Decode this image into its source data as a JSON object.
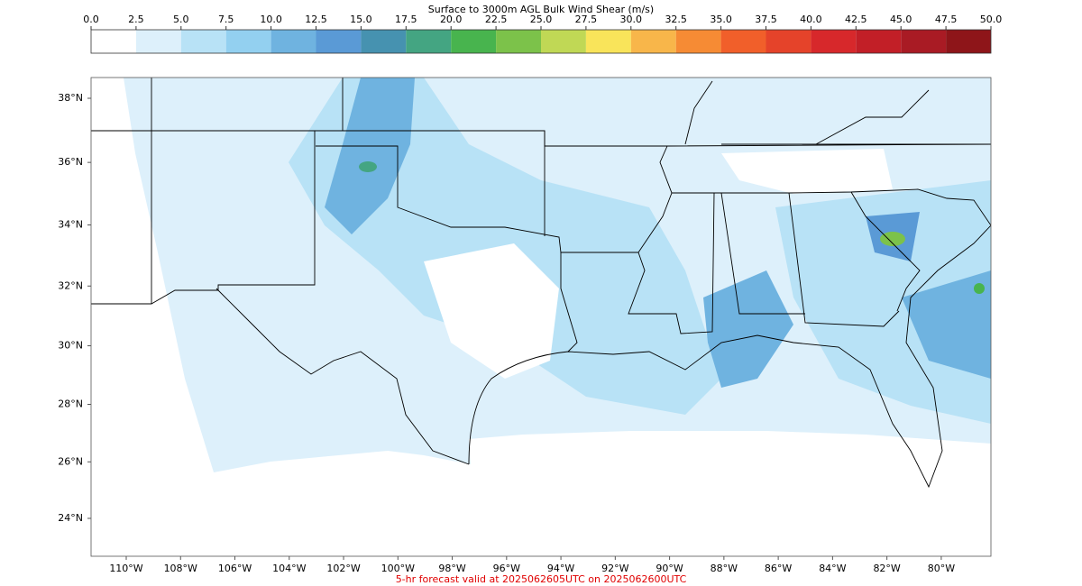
{
  "colorbar": {
    "title": "Surface to 3000m AGL Bulk Wind Shear (m/s)",
    "ticks": [
      {
        "value": 0,
        "label": "0.0"
      },
      {
        "value": 2.5,
        "label": "2.5"
      },
      {
        "value": 5,
        "label": "5.0"
      },
      {
        "value": 7.5,
        "label": "7.5"
      },
      {
        "value": 10,
        "label": "10.0"
      },
      {
        "value": 12.5,
        "label": "12.5"
      },
      {
        "value": 15,
        "label": "15.0"
      },
      {
        "value": 17.5,
        "label": "17.5"
      },
      {
        "value": 20,
        "label": "20.0"
      },
      {
        "value": 22.5,
        "label": "22.5"
      },
      {
        "value": 25,
        "label": "25.0"
      },
      {
        "value": 27.5,
        "label": "27.5"
      },
      {
        "value": 30,
        "label": "30.0"
      },
      {
        "value": 32.5,
        "label": "32.5"
      },
      {
        "value": 35,
        "label": "35.0"
      },
      {
        "value": 37.5,
        "label": "37.5"
      },
      {
        "value": 40,
        "label": "40.0"
      },
      {
        "value": 42.5,
        "label": "42.5"
      },
      {
        "value": 45,
        "label": "45.0"
      },
      {
        "value": 47.5,
        "label": "47.5"
      },
      {
        "value": 50,
        "label": "50.0"
      }
    ],
    "colors": [
      "#ffffff",
      "#ddf0fb",
      "#b8e2f6",
      "#93d0f0",
      "#6fb3e0",
      "#5a9ad6",
      "#4692b0",
      "#44a582",
      "#48b44e",
      "#7cc24a",
      "#c0d855",
      "#f9e45a",
      "#f8b64a",
      "#f68b34",
      "#f15f2a",
      "#e5432a",
      "#d7282b",
      "#c21f27",
      "#a91b24",
      "#8e1519"
    ]
  },
  "map": {
    "lat_ticks": [
      {
        "value": 38,
        "label": "38°N"
      },
      {
        "value": 36,
        "label": "36°N"
      },
      {
        "value": 34,
        "label": "34°N"
      },
      {
        "value": 32,
        "label": "32°N"
      },
      {
        "value": 30,
        "label": "30°N"
      },
      {
        "value": 28,
        "label": "28°N"
      },
      {
        "value": 26,
        "label": "26°N"
      },
      {
        "value": 24,
        "label": "24°N"
      }
    ],
    "lon_ticks": [
      {
        "value": -110,
        "label": "110°W"
      },
      {
        "value": -108,
        "label": "108°W"
      },
      {
        "value": -106,
        "label": "106°W"
      },
      {
        "value": -104,
        "label": "104°W"
      },
      {
        "value": -102,
        "label": "102°W"
      },
      {
        "value": -100,
        "label": "100°W"
      },
      {
        "value": -98,
        "label": "98°W"
      },
      {
        "value": -96,
        "label": "96°W"
      },
      {
        "value": -94,
        "label": "94°W"
      },
      {
        "value": -92,
        "label": "92°W"
      },
      {
        "value": -90,
        "label": "90°W"
      },
      {
        "value": -88,
        "label": "88°W"
      },
      {
        "value": -86,
        "label": "86°W"
      },
      {
        "value": -84,
        "label": "84°W"
      },
      {
        "value": -82,
        "label": "82°W"
      },
      {
        "value": -80,
        "label": "80°W"
      }
    ]
  },
  "footer": "5-hr forecast valid at 2025062605UTC on 2025062600UTC"
}
